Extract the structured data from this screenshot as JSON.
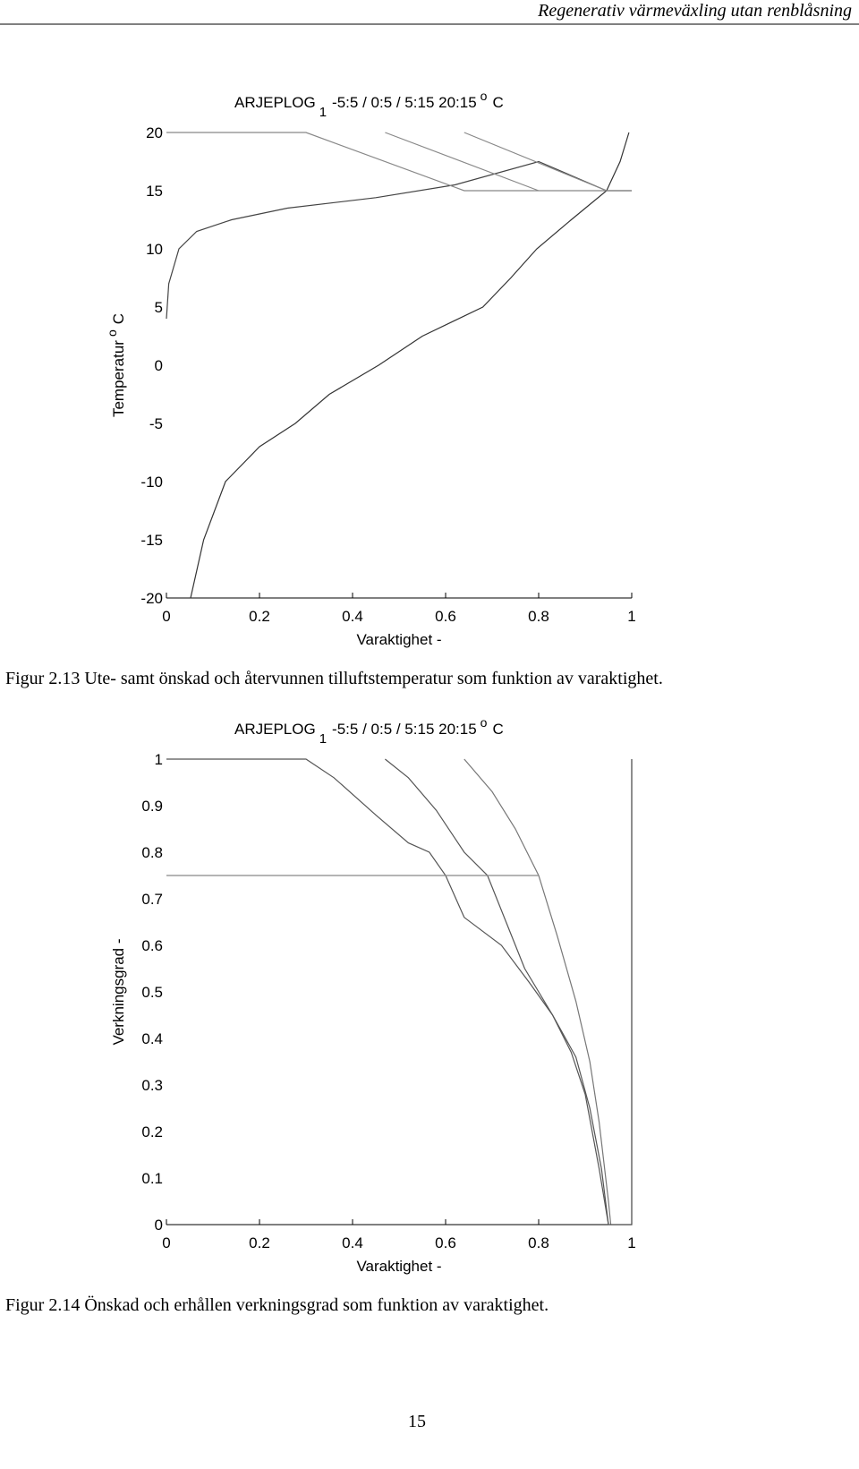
{
  "header": "Regenerativ värmeväxling utan renblåsning",
  "chart_data": [
    {
      "type": "line",
      "title": [
        "ARJEPLOG",
        "1",
        "-5:5 / 0:5 / 5:15   20:15",
        "o",
        "C"
      ],
      "y_label": [
        "Temperatur",
        "o",
        "C"
      ],
      "x_label": "Varaktighet  -",
      "xlim": [
        0,
        1
      ],
      "ylim": [
        -20,
        20
      ],
      "xticks": [
        0,
        0.2,
        0.4,
        0.6,
        0.8,
        1
      ],
      "yticks": [
        -20,
        -15,
        -10,
        -5,
        0,
        5,
        10,
        15,
        20
      ],
      "series": [
        {
          "color": "#333333",
          "x": [
            0.052,
            0.08,
            0.127,
            0.2,
            0.277,
            0.35,
            0.456,
            0.55,
            0.68,
            0.74,
            0.796,
            0.87,
            0.946,
            0.975,
            0.994
          ],
          "values": [
            -20,
            -15,
            -10,
            -7,
            -5,
            -2.5,
            0,
            2.5,
            5,
            7.5,
            10,
            12.5,
            15,
            17.5,
            20
          ]
        },
        {
          "color": "#444444",
          "x": [
            0,
            0.005,
            0.027,
            0.065,
            0.14,
            0.26,
            0.45,
            0.62,
            0.8,
            0.946,
            1
          ],
          "values": [
            4,
            7,
            10,
            11.5,
            12.5,
            13.5,
            14.4,
            15.5,
            17.5,
            15,
            15
          ]
        },
        {
          "color": "#888888",
          "x": [
            0,
            0.3,
            0.64,
            1
          ],
          "values": [
            20,
            20,
            15,
            15
          ]
        },
        {
          "color": "#888888",
          "x": [
            0.47,
            0.8
          ],
          "values": [
            20,
            15
          ]
        },
        {
          "color": "#888888",
          "x": [
            0.64,
            0.946
          ],
          "values": [
            20,
            15
          ]
        }
      ]
    },
    {
      "type": "line",
      "title": [
        "ARJEPLOG",
        "1",
        "-5:5 / 0:5 / 5:15   20:15",
        "o",
        "C"
      ],
      "y_label": [
        "Verkningsgrad  -"
      ],
      "x_label": "Varaktighet  -",
      "xlim": [
        0,
        1
      ],
      "ylim": [
        0,
        1
      ],
      "xticks": [
        0,
        0.2,
        0.4,
        0.6,
        0.8,
        1
      ],
      "yticks": [
        0,
        0.1,
        0.2,
        0.3,
        0.4,
        0.5,
        0.6,
        0.7,
        0.8,
        0.9,
        1
      ],
      "series": [
        {
          "color": "#555555",
          "x": [
            0,
            0.3,
            0.36,
            0.45,
            0.52,
            0.565,
            0.6,
            0.64,
            0.72,
            0.78,
            0.83,
            0.88,
            0.91,
            0.935,
            0.95
          ],
          "values": [
            1,
            1,
            0.96,
            0.88,
            0.82,
            0.8,
            0.75,
            0.66,
            0.6,
            0.52,
            0.45,
            0.36,
            0.25,
            0.12,
            0
          ]
        },
        {
          "color": "#555555",
          "x": [
            0.47,
            0.52,
            0.58,
            0.64,
            0.69,
            0.73,
            0.77,
            0.8,
            0.83,
            0.87,
            0.9,
            0.93,
            0.95
          ],
          "values": [
            1,
            0.96,
            0.89,
            0.8,
            0.75,
            0.65,
            0.55,
            0.5,
            0.45,
            0.37,
            0.28,
            0.12,
            0
          ]
        },
        {
          "color": "#777777",
          "x": [
            0.64,
            0.7,
            0.75,
            0.8,
            0.84,
            0.88,
            0.91,
            0.93,
            0.95,
            0.955
          ],
          "values": [
            1,
            0.93,
            0.85,
            0.75,
            0.62,
            0.48,
            0.35,
            0.22,
            0.05,
            0
          ]
        },
        {
          "color": "#888888",
          "x": [
            0,
            0.8
          ],
          "values": [
            0.75,
            0.75
          ]
        },
        {
          "color": "#444444",
          "x": [
            0.95,
            1,
            1
          ],
          "values": [
            0,
            0,
            1
          ]
        }
      ]
    }
  ],
  "captions": [
    "Figur 2.13 Ute- samt önskad och återvunnen tilluftstemperatur som funktion av varaktighet.",
    "Figur 2.14 Önskad och erhållen verkningsgrad som funktion av varaktighet."
  ],
  "page_number": "15"
}
